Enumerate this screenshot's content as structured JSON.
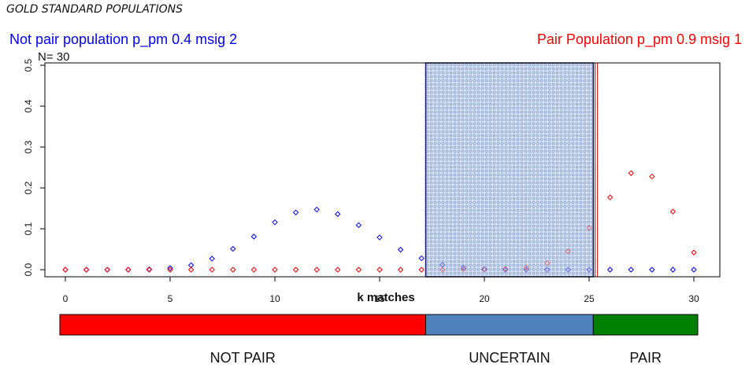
{
  "heading": "GOLD STANDARD POPULATIONS",
  "legend": {
    "not_pair": "Not pair population p_pm 0.4 msig 2",
    "pair": "Pair Population p_pm 0.9 msig 1"
  },
  "n_label": "N= 30",
  "colors": {
    "not_pair": "#0000ff",
    "pair": "#ff0000",
    "uncertain_fill": "#b9cbe8",
    "band_not_pair": "#ff0000",
    "band_uncertain": "#4f81bd",
    "band_pair": "#008000"
  },
  "chart_data": {
    "type": "scatter",
    "title": "",
    "xlabel": "k matches",
    "ylabel": "",
    "xlim": [
      0,
      30
    ],
    "ylim": [
      0,
      0.5
    ],
    "xticks": [
      0,
      5,
      10,
      15,
      20,
      25,
      30
    ],
    "yticks": [
      0.0,
      0.1,
      0.2,
      0.3,
      0.4,
      0.5
    ],
    "series": [
      {
        "name": "Not pair population p_pm 0.4 msig 2",
        "color": "#0000ff",
        "x": [
          0,
          1,
          2,
          3,
          4,
          5,
          6,
          7,
          8,
          9,
          10,
          11,
          12,
          13,
          14,
          15,
          16,
          17,
          18,
          19,
          20,
          21,
          22,
          23,
          24,
          25,
          26,
          27,
          28,
          29,
          30
        ],
        "y": [
          0,
          0,
          0,
          0,
          0.001,
          0.004,
          0.011,
          0.027,
          0.051,
          0.081,
          0.116,
          0.14,
          0.147,
          0.136,
          0.109,
          0.079,
          0.049,
          0.028,
          0.012,
          0.005,
          0.001,
          0,
          0,
          0,
          0,
          0,
          0,
          0,
          0,
          0,
          0
        ]
      },
      {
        "name": "Pair Population p_pm 0.9 msig 1",
        "color": "#ff0000",
        "x": [
          0,
          1,
          2,
          3,
          4,
          5,
          6,
          7,
          8,
          9,
          10,
          11,
          12,
          13,
          14,
          15,
          16,
          17,
          18,
          19,
          20,
          21,
          22,
          23,
          24,
          25,
          26,
          27,
          28,
          29,
          30
        ],
        "y": [
          0,
          0,
          0,
          0,
          0,
          0,
          0,
          0,
          0,
          0,
          0,
          0,
          0,
          0,
          0,
          0,
          0,
          0,
          0,
          0.001,
          0.001,
          0.002,
          0.005,
          0.016,
          0.045,
          0.102,
          0.177,
          0.236,
          0.228,
          0.142,
          0.042
        ]
      }
    ],
    "uncertain_region": [
      17.2,
      25.2
    ],
    "threshold_line": 25.4,
    "bands": [
      {
        "label": "NOT PAIR",
        "from": 0,
        "to": 17.2,
        "color": "#ff0000"
      },
      {
        "label": "UNCERTAIN",
        "from": 17.2,
        "to": 25.2,
        "color": "#4f81bd"
      },
      {
        "label": "PAIR",
        "from": 25.2,
        "to": 30,
        "color": "#008000"
      }
    ]
  }
}
